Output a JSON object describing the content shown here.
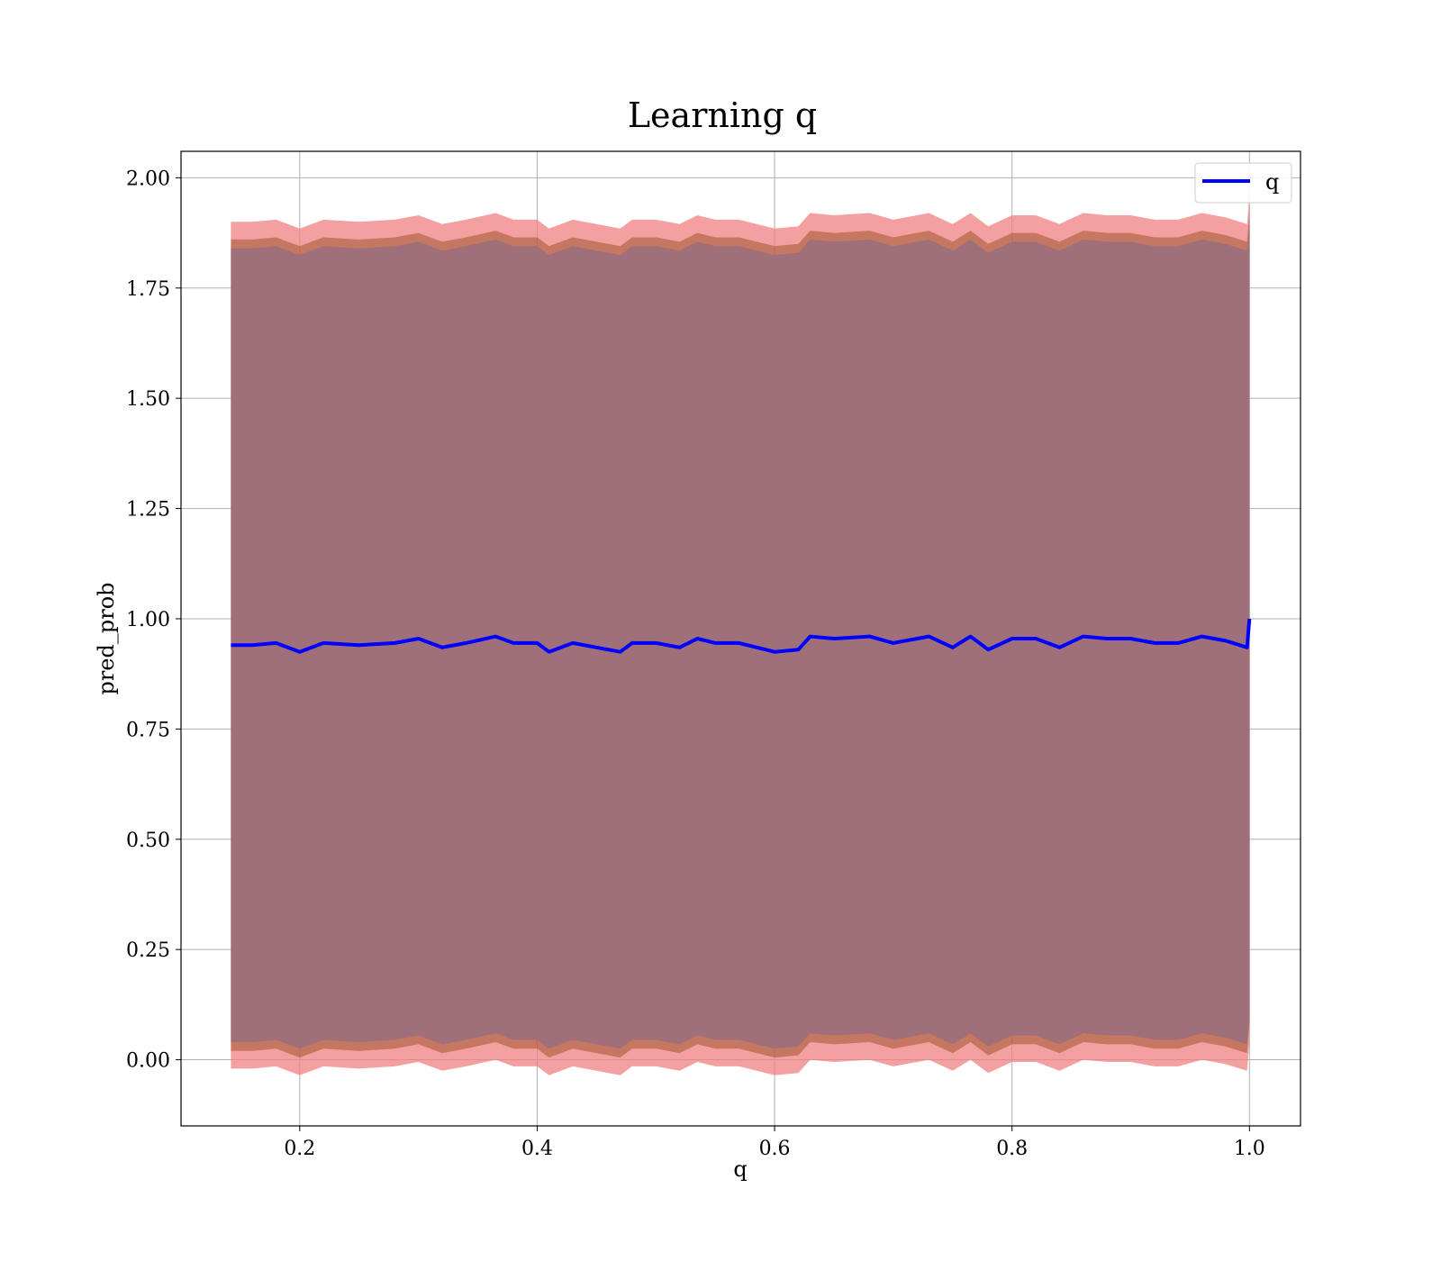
{
  "chart_data": {
    "type": "line",
    "title": "Learning q",
    "xlabel": "q",
    "ylabel": "pred_prob",
    "xlim": [
      0.1,
      1.043
    ],
    "ylim": [
      -0.15,
      2.06
    ],
    "xticks": [
      0.2,
      0.4,
      0.6,
      0.8,
      1.0
    ],
    "xtick_labels": [
      "0.2",
      "0.4",
      "0.6",
      "0.8",
      "1.0"
    ],
    "yticks": [
      0.0,
      0.25,
      0.5,
      0.75,
      1.0,
      1.25,
      1.5,
      1.75,
      2.0
    ],
    "ytick_labels": [
      "0.00",
      "0.25",
      "0.50",
      "0.75",
      "1.00",
      "1.25",
      "1.50",
      "1.75",
      "2.00"
    ],
    "grid": true,
    "legend": {
      "position": "top-right",
      "entries": [
        "q"
      ]
    },
    "colors": {
      "line": "#0000ff",
      "band_outer": "#f08080",
      "band_inner": "#8b4513",
      "band_main": "#a0707a",
      "grid": "#b0b0b0"
    },
    "series": [
      {
        "name": "q",
        "x": [
          0.142,
          0.16,
          0.18,
          0.2,
          0.22,
          0.25,
          0.28,
          0.3,
          0.32,
          0.34,
          0.365,
          0.38,
          0.4,
          0.41,
          0.43,
          0.45,
          0.47,
          0.48,
          0.5,
          0.52,
          0.535,
          0.55,
          0.57,
          0.6,
          0.62,
          0.63,
          0.65,
          0.68,
          0.7,
          0.73,
          0.75,
          0.765,
          0.78,
          0.8,
          0.82,
          0.84,
          0.86,
          0.88,
          0.9,
          0.92,
          0.94,
          0.96,
          0.98,
          0.998,
          1.0
        ],
        "y": [
          0.94,
          0.94,
          0.945,
          0.925,
          0.945,
          0.94,
          0.945,
          0.955,
          0.935,
          0.945,
          0.96,
          0.945,
          0.945,
          0.925,
          0.945,
          0.935,
          0.925,
          0.945,
          0.945,
          0.935,
          0.955,
          0.945,
          0.945,
          0.925,
          0.93,
          0.96,
          0.955,
          0.96,
          0.945,
          0.96,
          0.935,
          0.96,
          0.93,
          0.955,
          0.955,
          0.935,
          0.96,
          0.955,
          0.955,
          0.945,
          0.945,
          0.96,
          0.95,
          0.935,
          1.0
        ],
        "band_inner_half_width": 0.92,
        "band_outer_half_width": 0.96
      }
    ]
  }
}
